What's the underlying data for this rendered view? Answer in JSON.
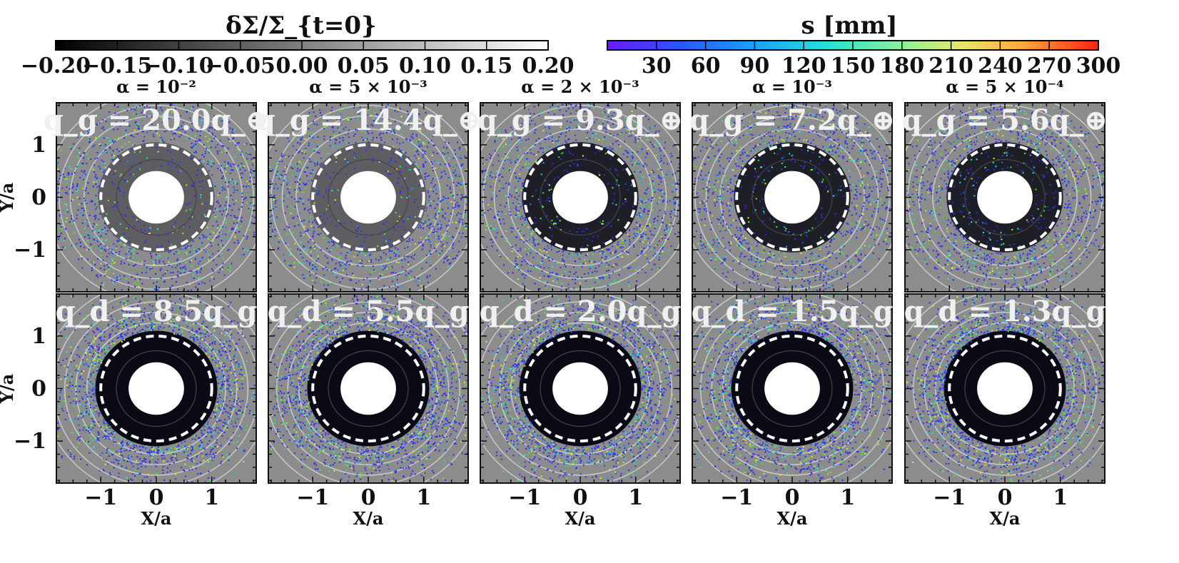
{
  "chart_data": {
    "type": "heatmap",
    "description_kind": "grid of 2x5 disk simulation maps with particle scatter overlay",
    "colorbars": [
      {
        "title": "δΣ/Σ_{t=0}",
        "scale": "gray",
        "range": [
          -0.2,
          0.2
        ],
        "tick_labels": [
          "−0.20",
          "−0.15",
          "−0.10",
          "−0.05",
          "0.00",
          "0.05",
          "0.10",
          "0.15",
          "0.20"
        ],
        "tick_values": [
          -0.2,
          -0.15,
          -0.1,
          -0.05,
          0.0,
          0.05,
          0.1,
          0.15,
          0.2
        ]
      },
      {
        "title": "s [mm]",
        "scale": "rainbow",
        "range": [
          0,
          300
        ],
        "tick_labels": [
          "30",
          "60",
          "90",
          "120",
          "150",
          "180",
          "210",
          "240",
          "270",
          "300"
        ],
        "tick_values": [
          30,
          60,
          90,
          120,
          150,
          180,
          210,
          240,
          270,
          300
        ]
      }
    ],
    "columns": [
      {
        "alpha_label": "α = 10⁻²",
        "alpha": 0.01,
        "top_annotation": "q_g = 20.0q_⊕",
        "bottom_annotation": "q_d = 8.5q_g",
        "qg_earth": 20.0,
        "qd_over_qg": 8.5
      },
      {
        "alpha_label": "α = 5 × 10⁻³",
        "alpha": 0.005,
        "top_annotation": "q_g = 14.4q_⊕",
        "bottom_annotation": "q_d = 5.5q_g",
        "qg_earth": 14.4,
        "qd_over_qg": 5.5
      },
      {
        "alpha_label": "α = 2 × 10⁻³",
        "alpha": 0.002,
        "top_annotation": "q_g = 9.3q_⊕",
        "bottom_annotation": "q_d = 2.0q_g",
        "qg_earth": 9.3,
        "qd_over_qg": 2.0
      },
      {
        "alpha_label": "α = 10⁻³",
        "alpha": 0.001,
        "top_annotation": "q_g = 7.2q_⊕",
        "bottom_annotation": "q_d = 1.5q_g",
        "qg_earth": 7.2,
        "qd_over_qg": 1.5
      },
      {
        "alpha_label": "α = 5 × 10⁻⁴",
        "alpha": 0.0005,
        "top_annotation": "q_g = 5.6q_⊕",
        "bottom_annotation": "q_d = 1.3q_g",
        "qg_earth": 5.6,
        "qd_over_qg": 1.3
      }
    ],
    "xlabel": "X/a",
    "ylabel": "Y/a",
    "xlim": [
      -1.8,
      1.8
    ],
    "ylim": [
      -1.8,
      1.8
    ],
    "x_tick_labels": [
      "−1",
      "0",
      "1"
    ],
    "y_tick_labels": [
      "1",
      "0",
      "−1"
    ],
    "tick_values": [
      -1,
      0,
      1
    ],
    "dashed_circle_radius": 1.0,
    "inner_hole_radius": 0.5
  }
}
